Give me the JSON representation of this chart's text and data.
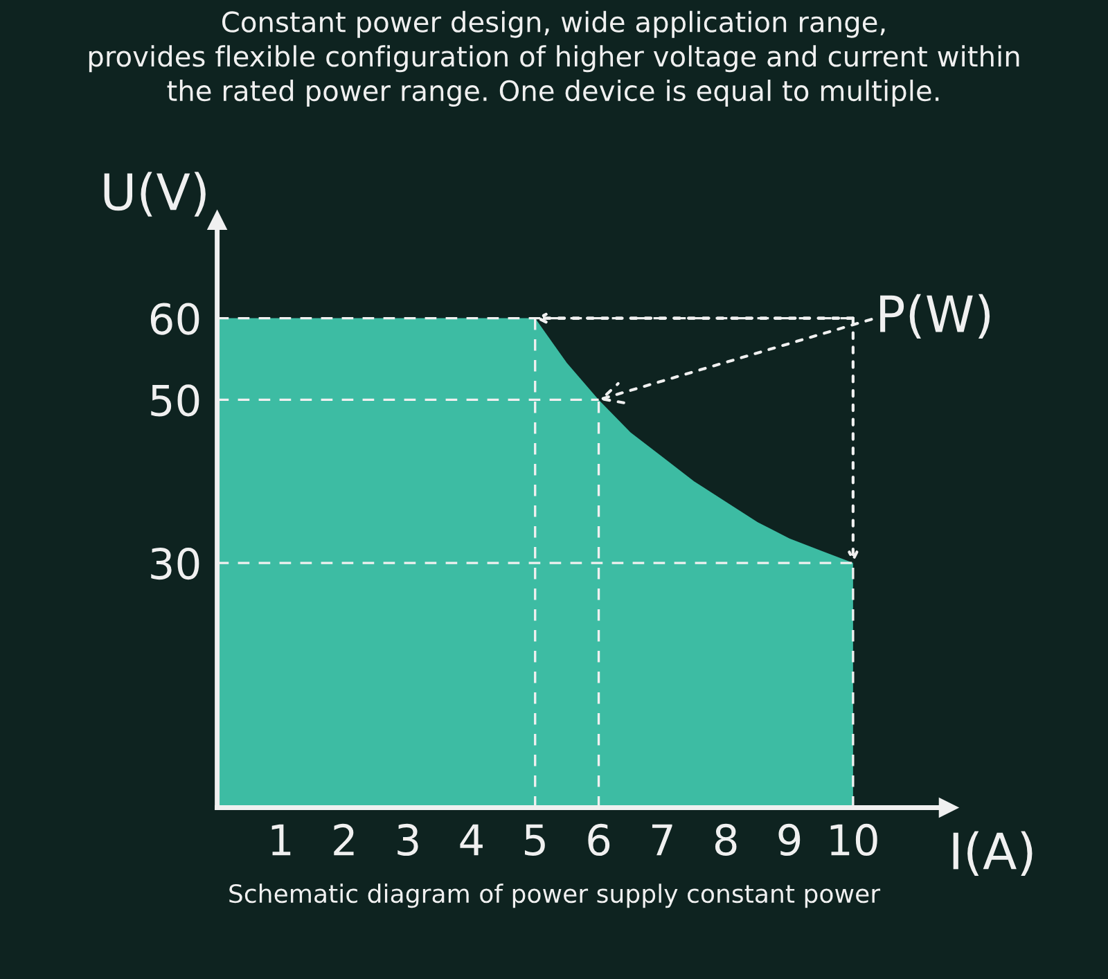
{
  "chart_data": {
    "type": "area",
    "title": "Constant power design, wide application range,\nprovides flexible configuration of higher voltage and current within\nthe rated power range. One device is equal to multiple.",
    "xlabel": "I(A)",
    "ylabel": "U(V)",
    "x": [
      0,
      5,
      5.5,
      6,
      6.5,
      7,
      7.5,
      8,
      8.5,
      9,
      9.5,
      10
    ],
    "series": [
      {
        "color": "#3dbca3",
        "values": [
          60,
          60,
          54.5,
          50,
          46,
          43,
          40,
          37.5,
          35,
          33,
          31.5,
          30
        ]
      }
    ],
    "xlim": [
      0,
      11.5
    ],
    "ylim": [
      0,
      72
    ],
    "xticks": [
      1,
      2,
      3,
      4,
      5,
      6,
      7,
      8,
      9,
      10
    ],
    "yticks": [
      30,
      50,
      60
    ],
    "grid": false,
    "legend": false,
    "ref_lines": [
      {
        "axis": "y",
        "value": 60,
        "label": null,
        "line_style": "dashed"
      },
      {
        "axis": "y",
        "value": 50,
        "label": null,
        "line_style": "dashed"
      },
      {
        "axis": "y",
        "value": 30,
        "label": null,
        "line_style": "dashed"
      },
      {
        "axis": "x",
        "value": 5,
        "label": null,
        "line_style": "dashed"
      },
      {
        "axis": "x",
        "value": 6,
        "label": null,
        "line_style": "dashed"
      },
      {
        "axis": "x",
        "value": 10,
        "label": null,
        "line_style": "dashed"
      }
    ],
    "annotations": [
      {
        "text": "P(W)",
        "x": 6,
        "y": 50
      },
      "Schematic diagram of power supply constant power"
    ]
  }
}
